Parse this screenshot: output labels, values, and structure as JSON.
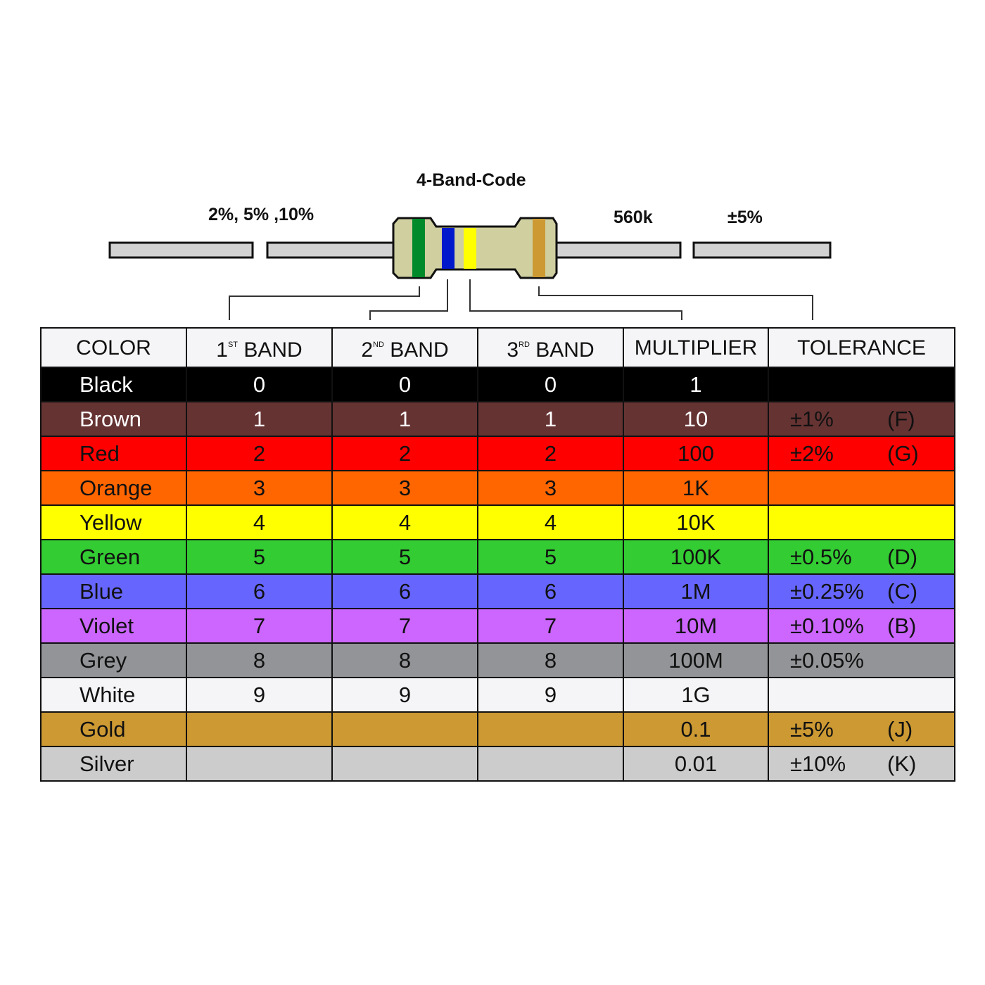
{
  "diagram": {
    "title": "4-Band-Code",
    "tolerance_range_label": "2%, 5% ,10%",
    "value_label": "560k",
    "tolerance_label": "±5%",
    "band_colors": [
      "#008a2a",
      "#0018cc",
      "#ffff00",
      "#cc9933"
    ],
    "body_color": "#d0cfa0",
    "lead_color": "#d2d2d2"
  },
  "table": {
    "headers": [
      {
        "main": "COLOR",
        "sup": "",
        "rest": ""
      },
      {
        "main": "1",
        "sup": "ST",
        "rest": " BAND"
      },
      {
        "main": "2",
        "sup": "ND",
        "rest": " BAND"
      },
      {
        "main": "3",
        "sup": "RD",
        "rest": " BAND"
      },
      {
        "main": "MULTIPLIER",
        "sup": "",
        "rest": ""
      },
      {
        "main": "TOLERANCE",
        "sup": "",
        "rest": ""
      }
    ],
    "rows": [
      {
        "color": "Black",
        "bg": "#000000",
        "fg": "#ffffff",
        "b1": "0",
        "b2": "0",
        "b3": "0",
        "mult": "1",
        "tol": "",
        "code": ""
      },
      {
        "color": "Brown",
        "bg": "#663333",
        "fg": "#ffffff",
        "b1": "1",
        "b2": "1",
        "b3": "1",
        "mult": "10",
        "tol": "±1%",
        "code": "(F)"
      },
      {
        "color": "Red",
        "bg": "#ff0000",
        "fg": "#111111",
        "b1": "2",
        "b2": "2",
        "b3": "2",
        "mult": "100",
        "tol": "±2%",
        "code": "(G)"
      },
      {
        "color": "Orange",
        "bg": "#ff6600",
        "fg": "#111111",
        "b1": "3",
        "b2": "3",
        "b3": "3",
        "mult": "1K",
        "tol": "",
        "code": ""
      },
      {
        "color": "Yellow",
        "bg": "#ffff00",
        "fg": "#111111",
        "b1": "4",
        "b2": "4",
        "b3": "4",
        "mult": "10K",
        "tol": "",
        "code": ""
      },
      {
        "color": "Green",
        "bg": "#33cc33",
        "fg": "#111111",
        "b1": "5",
        "b2": "5",
        "b3": "5",
        "mult": "100K",
        "tol": "±0.5%",
        "code": "(D)"
      },
      {
        "color": "Blue",
        "bg": "#6666ff",
        "fg": "#111111",
        "b1": "6",
        "b2": "6",
        "b3": "6",
        "mult": "1M",
        "tol": "±0.25%",
        "code": "(C)"
      },
      {
        "color": "Violet",
        "bg": "#cc66ff",
        "fg": "#111111",
        "b1": "7",
        "b2": "7",
        "b3": "7",
        "mult": "10M",
        "tol": "±0.10%",
        "code": "(B)"
      },
      {
        "color": "Grey",
        "bg": "#929497",
        "fg": "#111111",
        "b1": "8",
        "b2": "8",
        "b3": "8",
        "mult": "100M",
        "tol": "±0.05%",
        "code": ""
      },
      {
        "color": "White",
        "bg": "#f5f5f7",
        "fg": "#111111",
        "b1": "9",
        "b2": "9",
        "b3": "9",
        "mult": "1G",
        "tol": "",
        "code": ""
      },
      {
        "color": "Gold",
        "bg": "#cc9933",
        "fg": "#111111",
        "b1": "",
        "b2": "",
        "b3": "",
        "mult": "0.1",
        "tol": "±5%",
        "code": "(J)"
      },
      {
        "color": "Silver",
        "bg": "#cccccc",
        "fg": "#111111",
        "b1": "",
        "b2": "",
        "b3": "",
        "mult": "0.01",
        "tol": "±10%",
        "code": "(K)"
      }
    ]
  }
}
